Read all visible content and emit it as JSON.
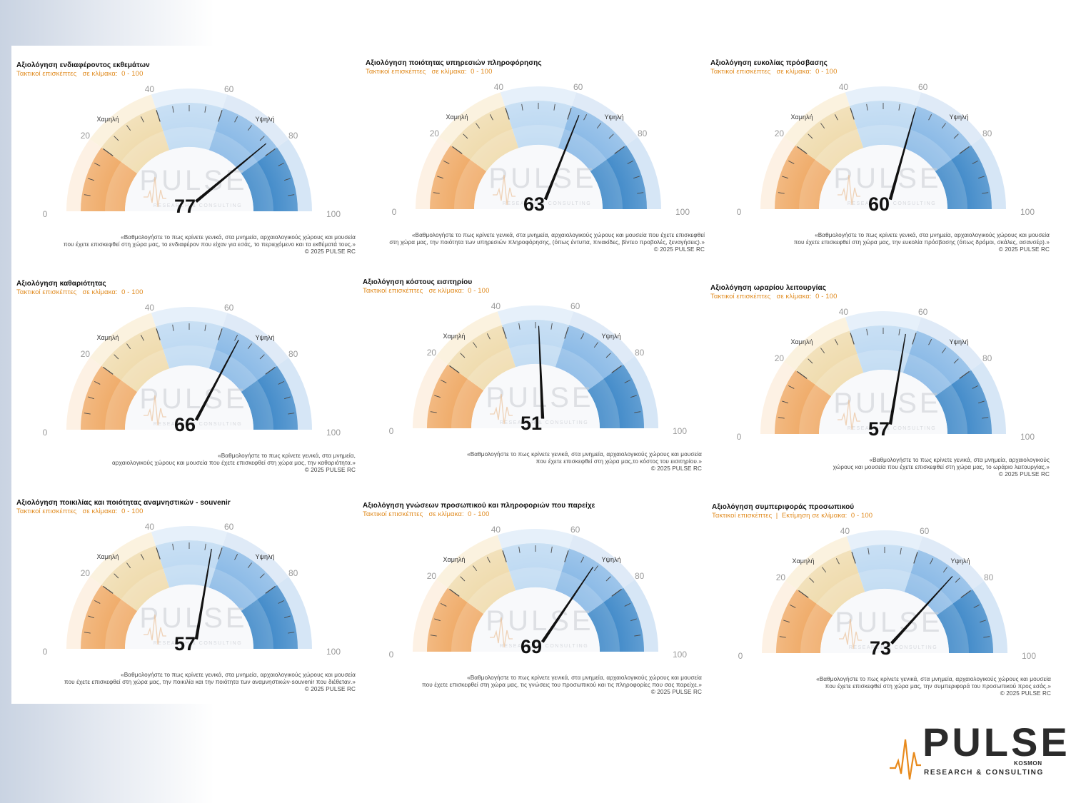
{
  "subtitle_default": "Τακτικοί επισκέπτες   σε κλίμακα:  0 - 100",
  "gauge_labels": {
    "ticks": [
      "0",
      "20",
      "40",
      "60",
      "80",
      "100"
    ],
    "low": "Χαμηλή",
    "high": "Υψηλή",
    "watermark": "PULSE",
    "watermark_sub": "RESEARCH & CONSULTING"
  },
  "colors": {
    "orange": "#eea35a",
    "beige": "#eed8a6",
    "light_blue": "#b8d6f1",
    "mid_blue": "#7fb3e4",
    "dark_blue": "#2f7fc4",
    "subtitle": "#e08a1e"
  },
  "gauges": [
    {
      "title": "Αξιολόγηση ενδιαφέροντος εκθεμάτων",
      "subtitle": "Τακτικοί επισκέπτες   σε κλίμακα:  0 - 100",
      "value_label": "77",
      "q1": "«Βαθμολογήστε το πως κρίνετε γενικά, στα μνημεία, αρχαιολογικούς χώρους και μουσεία",
      "q2": "που έχετε επισκεφθεί στη χώρα μας, το ενδιαφέρον που είχαν για εσάς, το περιεχόμενο και τα εκθέματά τους.»",
      "copyright": "©  2025  PULSE RC"
    },
    {
      "title": "Αξιολόγηση ποιότητας υπηρεσιών πληροφόρησης",
      "subtitle": "Τακτικοί επισκέπτες   σε κλίμακα:  0 - 100",
      "value_label": "63",
      "q1": "«Βαθμολογήστε το πως κρίνετε γενικά, στα μνημεία, αρχαιολογικούς χώρους και μουσεία που έχετε επισκεφθεί",
      "q2": "στη χώρα μας, την ποιότητα των υπηρεσιών πληροφόρησης, (όπως  έντυπα, πινακίδες, βίντεο προβολές, ξεναγήσεις).»",
      "copyright": "©  2025  PULSE RC"
    },
    {
      "title": "Αξιολόγηση ευκολίας πρόσβασης",
      "subtitle": "Τακτικοί επισκέπτες   σε κλίμακα:  0 - 100",
      "value_label": "60",
      "q1": "«Βαθμολογήστε το πως κρίνετε γενικά, στα μνημεία, αρχαιολογικούς χώρους και μουσεία",
      "q2": "που έχετε επισκεφθεί στη χώρα μας, την ευκολία πρόσβασης (όπως δρόμοι, σκάλες, ασανσέρ).»",
      "copyright": "©  2025  PULSE RC"
    },
    {
      "title": "Αξιολόγηση καθαριότητας",
      "subtitle": "Τακτικοί επισκέπτες   σε κλίμακα:  0 - 100",
      "value_label": "66",
      "q1": "«Βαθμολογήστε το πως κρίνετε γενικά, στα μνημεία,",
      "q2": "αρχαιολογικούς χώρους και μουσεία που έχετε επισκεφθεί στη χώρα μας, την καθαριότητα.»",
      "copyright": "©  2025  PULSE RC"
    },
    {
      "title": "Αξιολόγηση κόστους εισιτηρίου",
      "subtitle": "Τακτικοί επισκέπτες   σε κλίμακα:  0 - 100",
      "value_label": "51",
      "q1": "«Βαθμολογήστε το πως κρίνετε γενικά, στα μνημεία, αρχαιολογικούς χώρους και μουσεία",
      "q2": "που έχετε επισκεφθεί στη χώρα μας,το κόστος του εισιτηρίου.»",
      "copyright": "©  2025  PULSE RC"
    },
    {
      "title": "Αξιολόγηση ωραρίου λειτουργίας",
      "subtitle": "Τακτικοί επισκέπτες   σε κλίμακα:  0 - 100",
      "value_label": "57",
      "q1": "«Βαθμολογήστε το πως κρίνετε γενικά, στα μνημεία, αρχαιολογικούς",
      "q2": "χώρους και μουσεία που έχετε επισκεφθεί στη χώρα μας, το ωράριο λειτουργίας.»",
      "copyright": "©  2025  PULSE RC"
    },
    {
      "title": "Αξιολόγηση ποικιλίας και ποιότητας αναμνηστικών - souvenir",
      "subtitle": "Τακτικοί επισκέπτες   σε κλίμακα:  0 - 100",
      "value_label": "57",
      "q1": "«Βαθμολογήστε το πως κρίνετε γενικά, στα μνημεία, αρχαιολογικούς χώρους και μουσεία",
      "q2": "που έχετε επισκεφθεί στη χώρα μας, την ποικιλία και την ποιότητα των αναμνηστικών-souvenir που διέθεταν.»",
      "copyright": "©  2025  PULSE RC"
    },
    {
      "title": "Αξιολόγηση γνώσεων προσωπικού και πληροφοριών που παρείχε",
      "subtitle": "Τακτικοί επισκέπτες   σε κλίμακα:  0 - 100",
      "value_label": "69",
      "q1": "«Βαθμολογήστε το πως κρίνετε γενικά, στα μνημεία, αρχαιολογικούς χώρους και μουσεία",
      "q2": "που έχετε επισκεφθεί στη χώρα μας, τις γνώσεις του προσωπικού και τις πληροφορίες που σας παρείχε.»",
      "copyright": "©  2025  PULSE RC"
    },
    {
      "title": "Αξιολόγηση συμπεριφοράς προσωπικού",
      "subtitle": "Τακτικοί επισκέπτες  |  Εκτίμηση σε κλίμακα:  0 - 100",
      "value_label": "73",
      "q1": "«Βαθμολογήστε το πως κρίνετε γενικά, στα μνημεία, αρχαιολογικούς χώρους και μουσεία",
      "q2": "που έχετε επισκεφθεί στη χώρα μας, την συμπεριφορά του προσωπικού προς εσάς.»",
      "copyright": "©  2025  PULSE RC"
    }
  ],
  "chart_data": [
    {
      "type": "gauge",
      "title": "Αξιολόγηση ενδιαφέροντος εκθεμάτων",
      "value": 77,
      "range": [
        0,
        100
      ]
    },
    {
      "type": "gauge",
      "title": "Αξιολόγηση ποιότητας υπηρεσιών πληροφόρησης",
      "value": 63,
      "range": [
        0,
        100
      ]
    },
    {
      "type": "gauge",
      "title": "Αξιολόγηση ευκολίας πρόσβασης",
      "value": 60,
      "range": [
        0,
        100
      ]
    },
    {
      "type": "gauge",
      "title": "Αξιολόγηση καθαριότητας",
      "value": 66,
      "range": [
        0,
        100
      ]
    },
    {
      "type": "gauge",
      "title": "Αξιολόγηση κόστους εισιτηρίου",
      "value": 51,
      "range": [
        0,
        100
      ]
    },
    {
      "type": "gauge",
      "title": "Αξιολόγηση ωραρίου λειτουργίας",
      "value": 57,
      "range": [
        0,
        100
      ]
    },
    {
      "type": "gauge",
      "title": "Αξιολόγηση ποικιλίας και ποιότητας αναμνηστικών - souvenir",
      "value": 57,
      "range": [
        0,
        100
      ]
    },
    {
      "type": "gauge",
      "title": "Αξιολόγηση γνώσεων προσωπικού και πληροφοριών που παρείχε",
      "value": 69,
      "range": [
        0,
        100
      ]
    },
    {
      "type": "gauge",
      "title": "Αξιολόγηση συμπεριφοράς προσωπικού",
      "value": 73,
      "range": [
        0,
        100
      ]
    }
  ],
  "logo": {
    "name": "PULSE",
    "sub": "RESEARCH & CONSULTING",
    "kosmon": "KOSMON"
  }
}
